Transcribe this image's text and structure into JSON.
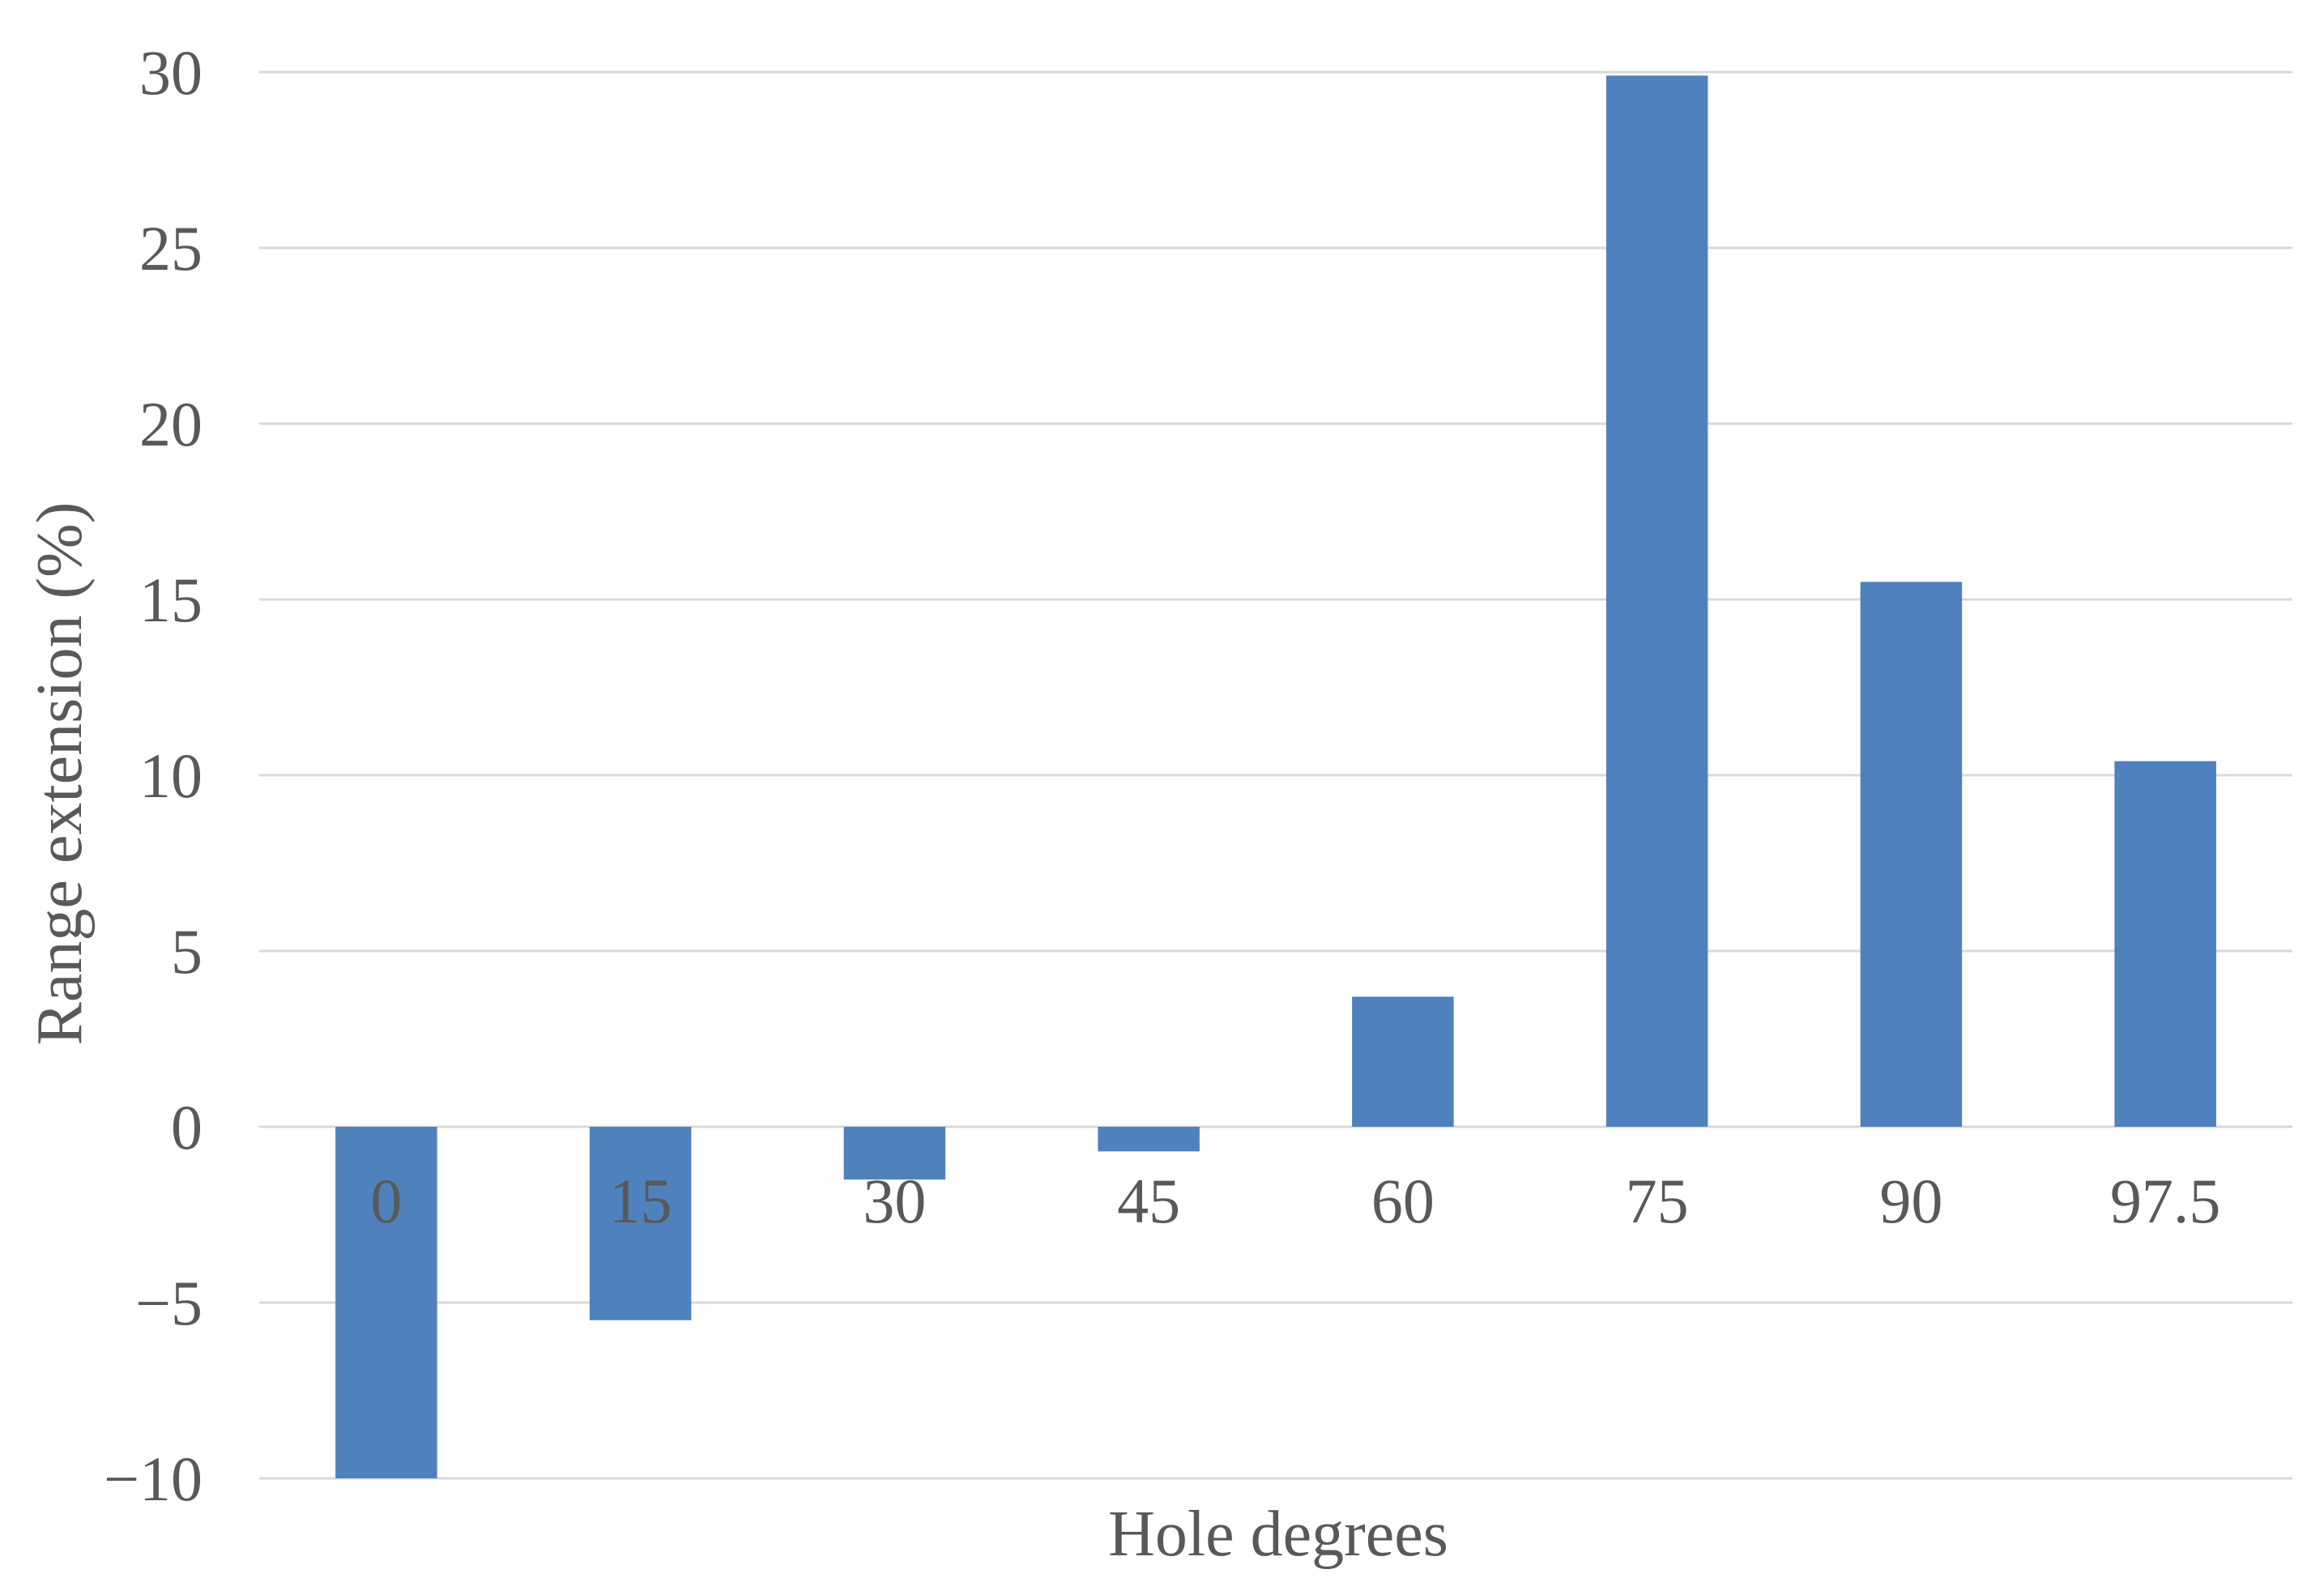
{
  "chart_data": {
    "type": "bar",
    "xlabel": "Hole degrees",
    "ylabel": "Range extension (%)",
    "categories": [
      "0",
      "15",
      "30",
      "45",
      "60",
      "75",
      "90",
      "97.5"
    ],
    "values": [
      -10,
      -5.5,
      -1.5,
      -0.7,
      3.7,
      29.9,
      15.5,
      10.4
    ],
    "ylim": [
      -10,
      30
    ],
    "yticks": [
      -10,
      -5,
      0,
      5,
      10,
      15,
      20,
      25,
      30
    ],
    "ytick_labels": [
      "−10",
      "−5",
      "0",
      "5",
      "10",
      "15",
      "20",
      "25",
      "30"
    ],
    "grid": true,
    "bar_color": "#4F81BD",
    "grid_color": "#D9D9D9",
    "text_color": "#595959"
  }
}
